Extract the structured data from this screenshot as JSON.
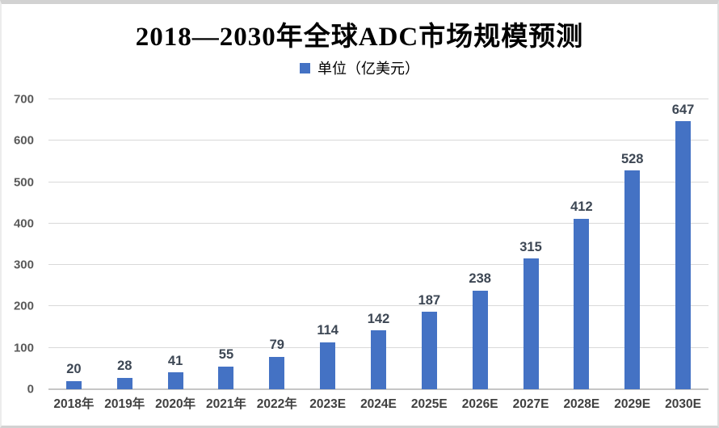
{
  "chart_data": {
    "type": "bar",
    "title": "2018—2030年全球ADC市场规模预测",
    "legend": "单位（亿美元）",
    "categories": [
      "2018年",
      "2019年",
      "2020年",
      "2021年",
      "2022年",
      "2023E",
      "2024E",
      "2025E",
      "2026E",
      "2027E",
      "2028E",
      "2029E",
      "2030E"
    ],
    "values": [
      20,
      28,
      41,
      55,
      79,
      114,
      142,
      187,
      238,
      315,
      412,
      528,
      647
    ],
    "xlabel": "",
    "ylabel": "",
    "ylim": [
      0,
      700
    ],
    "ytick_step": 100,
    "yticks": [
      0,
      100,
      200,
      300,
      400,
      500,
      600,
      700
    ],
    "grid": true,
    "legend_position": "top",
    "bar_color": "#4472C4",
    "gridline_color": "#D9D9D9",
    "axis_line_color": "#C6C6C6",
    "ytick_color": "#595959",
    "xtick_color": "#404040",
    "data_label_color": "#3D4754"
  }
}
